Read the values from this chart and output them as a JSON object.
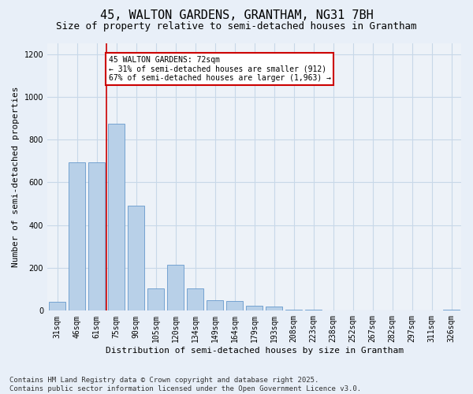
{
  "title1": "45, WALTON GARDENS, GRANTHAM, NG31 7BH",
  "title2": "Size of property relative to semi-detached houses in Grantham",
  "xlabel": "Distribution of semi-detached houses by size in Grantham",
  "ylabel": "Number of semi-detached properties",
  "categories": [
    "31sqm",
    "46sqm",
    "61sqm",
    "75sqm",
    "90sqm",
    "105sqm",
    "120sqm",
    "134sqm",
    "149sqm",
    "164sqm",
    "179sqm",
    "193sqm",
    "208sqm",
    "223sqm",
    "238sqm",
    "252sqm",
    "267sqm",
    "282sqm",
    "297sqm",
    "311sqm",
    "326sqm"
  ],
  "values": [
    40,
    695,
    695,
    875,
    490,
    105,
    215,
    105,
    48,
    47,
    25,
    18,
    5,
    5,
    2,
    1,
    0,
    0,
    0,
    0,
    5
  ],
  "bar_color": "#b8d0e8",
  "bar_edge_color": "#6699cc",
  "vline_x_data": 2.5,
  "vline_color": "#cc0000",
  "annotation_text": "45 WALTON GARDENS: 72sqm\n← 31% of semi-detached houses are smaller (912)\n67% of semi-detached houses are larger (1,963) →",
  "annotation_box_color": "#cc0000",
  "annotation_bg": "#ffffff",
  "ylim": [
    0,
    1250
  ],
  "yticks": [
    0,
    200,
    400,
    600,
    800,
    1000,
    1200
  ],
  "footnote": "Contains HM Land Registry data © Crown copyright and database right 2025.\nContains public sector information licensed under the Open Government Licence v3.0.",
  "bg_color": "#e8eff8",
  "plot_bg_color": "#edf2f8",
  "grid_color": "#c8d8e8",
  "title1_fontsize": 11,
  "title2_fontsize": 9,
  "axis_label_fontsize": 8,
  "tick_fontsize": 7,
  "footnote_fontsize": 6.5
}
